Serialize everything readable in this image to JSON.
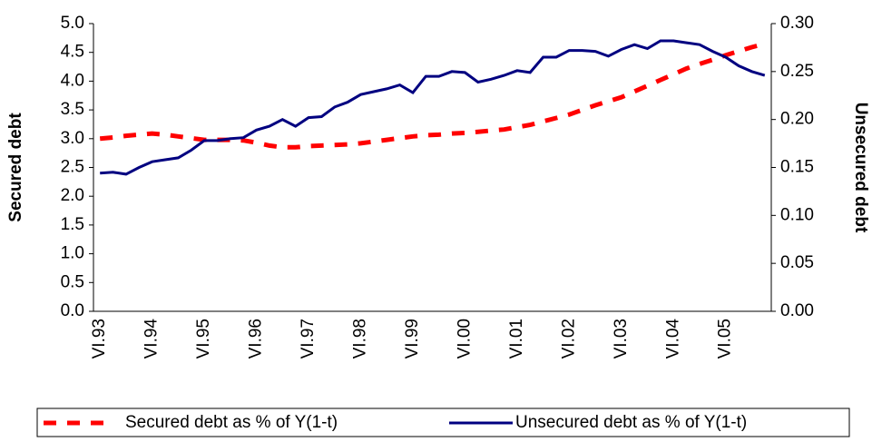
{
  "chart_data": {
    "type": "line",
    "categories": [
      "VI.93",
      null,
      null,
      null,
      "VI.94",
      null,
      null,
      null,
      "VI.95",
      null,
      null,
      null,
      "VI.96",
      null,
      null,
      null,
      "VI.97",
      null,
      null,
      null,
      "VI.98",
      null,
      null,
      null,
      "VI.99",
      null,
      null,
      null,
      "VI.00",
      null,
      null,
      null,
      "VI.01",
      null,
      null,
      null,
      "VI.02",
      null,
      null,
      null,
      "VI.03",
      null,
      null,
      null,
      "VI.04",
      null,
      null,
      null,
      "VI.05",
      null,
      null,
      null
    ],
    "ylabel": "Secured debt",
    "y2label": "Unsecured debt",
    "ylim": [
      0,
      5
    ],
    "yticks": [
      {
        "value": 0,
        "label": "0.0"
      },
      {
        "value": 0.5,
        "label": "0.5"
      },
      {
        "value": 1,
        "label": "1.0"
      },
      {
        "value": 1.5,
        "label": "1.5"
      },
      {
        "value": 2,
        "label": "2.0"
      },
      {
        "value": 2.5,
        "label": "2.5"
      },
      {
        "value": 3,
        "label": "3.0"
      },
      {
        "value": 3.5,
        "label": "3.5"
      },
      {
        "value": 4,
        "label": "4.0"
      },
      {
        "value": 4.5,
        "label": "4.5"
      },
      {
        "value": 5,
        "label": "5.0"
      }
    ],
    "y2lim": [
      0,
      0.3
    ],
    "y2ticks": [
      {
        "value": 0,
        "label": "0.00"
      },
      {
        "value": 0.05,
        "label": "0.05"
      },
      {
        "value": 0.1,
        "label": "0.10"
      },
      {
        "value": 0.15,
        "label": "0.15"
      },
      {
        "value": 0.2,
        "label": "0.20"
      },
      {
        "value": 0.25,
        "label": "0.25"
      },
      {
        "value": 0.3,
        "label": "0.30"
      }
    ],
    "grid": false,
    "legend": "bottom",
    "series": [
      {
        "name": "Secured debt as % of Y(1-t)",
        "color": "#ff0000",
        "dashed": true,
        "values": [
          3.0,
          3.02,
          3.05,
          3.07,
          3.09,
          3.07,
          3.04,
          3.01,
          2.98,
          2.98,
          2.98,
          2.97,
          2.93,
          2.88,
          2.85,
          2.85,
          2.87,
          2.88,
          2.89,
          2.9,
          2.92,
          2.95,
          2.98,
          3.01,
          3.04,
          3.06,
          3.07,
          3.09,
          3.1,
          3.12,
          3.14,
          3.16,
          3.2,
          3.24,
          3.3,
          3.36,
          3.42,
          3.5,
          3.58,
          3.65,
          3.72,
          3.82,
          3.92,
          4.02,
          4.12,
          4.22,
          4.3,
          4.37,
          4.45,
          4.52,
          4.59,
          4.65
        ]
      },
      {
        "name": "Unsecured debt as % of Y(1-t)",
        "color": "#000080",
        "axis": "y2",
        "values": [
          0.144,
          0.145,
          0.143,
          0.15,
          0.156,
          0.158,
          0.16,
          0.168,
          0.178,
          0.178,
          0.18,
          0.181,
          0.189,
          0.193,
          0.2,
          0.193,
          0.202,
          0.203,
          0.213,
          0.218,
          0.226,
          0.229,
          0.232,
          0.236,
          0.228,
          0.245,
          0.245,
          0.25,
          0.249,
          0.239,
          0.242,
          0.246,
          0.251,
          0.249,
          0.265,
          0.265,
          0.272,
          0.272,
          0.271,
          0.266,
          0.273,
          0.278,
          0.274,
          0.282,
          0.282,
          0.28,
          0.278,
          0.271,
          0.265,
          0.256,
          0.25,
          0.246
        ]
      }
    ]
  }
}
